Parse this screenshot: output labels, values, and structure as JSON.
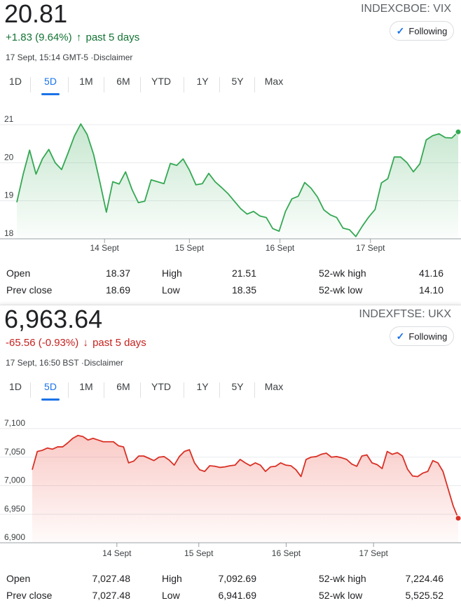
{
  "panels": [
    {
      "id": "vix",
      "price": "20.81",
      "exchange": "INDEXCBOE: VIX",
      "change_text": "+1.83 (9.64%)",
      "change_arrow": "↑",
      "change_period": "past 5 days",
      "direction": "up",
      "follow_label": "Following",
      "timestamp": "17 Sept, 15:14 GMT-5 ·Disclaimer",
      "tabs": [
        "1D",
        "5D",
        "1M",
        "6M",
        "YTD",
        "1Y",
        "5Y",
        "Max"
      ],
      "active_tab": "5D",
      "line_color": "#34a853",
      "fill_color": "#34a853",
      "stats": {
        "open_label": "Open",
        "open": "18.37",
        "high_label": "High",
        "high": "21.51",
        "wk52_high_label": "52-wk high",
        "wk52_high": "41.16",
        "prev_close_label": "Prev close",
        "prev_close": "18.69",
        "low_label": "Low",
        "low": "18.35",
        "wk52_low_label": "52-wk low",
        "wk52_low": "14.10"
      }
    },
    {
      "id": "ukx",
      "price": "6,963.64",
      "exchange": "INDEXFTSE: UKX",
      "change_text": "-65.56 (-0.93%)",
      "change_arrow": "↓",
      "change_period": "past 5 days",
      "direction": "down",
      "follow_label": "Following",
      "timestamp": "17 Sept, 16:50 BST ·Disclaimer",
      "tabs": [
        "1D",
        "5D",
        "1M",
        "6M",
        "YTD",
        "1Y",
        "5Y",
        "Max"
      ],
      "active_tab": "5D",
      "line_color": "#d93025",
      "fill_color": "#ea4335",
      "stats": {
        "open_label": "Open",
        "open": "7,027.48",
        "high_label": "High",
        "high": "7,092.69",
        "wk52_high_label": "52-wk high",
        "wk52_high": "7,224.46",
        "prev_close_label": "Prev close",
        "prev_close": "7,027.48",
        "low_label": "Low",
        "low": "6,941.69",
        "wk52_low_label": "52-wk low",
        "wk52_low": "5,525.52"
      }
    }
  ],
  "chart_data": [
    {
      "type": "area",
      "ylim": [
        18,
        21
      ],
      "yticks": [
        {
          "value": 18,
          "label": "18"
        },
        {
          "value": 19,
          "label": "19"
        },
        {
          "value": 20,
          "label": "20"
        },
        {
          "value": 21,
          "label": "21"
        }
      ],
      "xticks": [
        {
          "value": 15.5,
          "label": "14 Sept"
        },
        {
          "value": 30.5,
          "label": "15 Sept"
        },
        {
          "value": 46.5,
          "label": "16 Sept"
        },
        {
          "value": 62.5,
          "label": "17 Sept"
        }
      ],
      "x_range": [
        0,
        78
      ],
      "values": [
        18.96,
        19.7,
        20.33,
        19.7,
        20.1,
        20.35,
        20.0,
        19.82,
        20.25,
        20.7,
        21.02,
        20.74,
        20.22,
        19.48,
        18.7,
        19.5,
        19.44,
        19.76,
        19.3,
        18.95,
        18.99,
        19.55,
        19.5,
        19.45,
        19.98,
        19.93,
        20.1,
        19.8,
        19.42,
        19.45,
        19.72,
        19.5,
        19.35,
        19.19,
        18.99,
        18.79,
        18.65,
        18.72,
        18.6,
        18.56,
        18.27,
        18.2,
        18.72,
        19.05,
        19.12,
        19.48,
        19.33,
        19.1,
        18.76,
        18.63,
        18.56,
        18.28,
        18.24,
        18.06,
        18.33,
        18.57,
        18.77,
        19.47,
        19.58,
        20.15,
        20.15,
        20.0,
        19.76,
        19.97,
        20.6,
        20.71,
        20.76,
        20.66,
        20.65,
        20.81
      ]
    },
    {
      "type": "area",
      "ylim": [
        6900,
        7100
      ],
      "yticks": [
        {
          "value": 6900,
          "label": "6,900"
        },
        {
          "value": 6950,
          "label": "6,950"
        },
        {
          "value": 7000,
          "label": "7,000"
        },
        {
          "value": 7050,
          "label": "7,050"
        },
        {
          "value": 7100,
          "label": "7,100"
        }
      ],
      "xticks": [
        {
          "value": 15.5,
          "label": "14 Sept"
        },
        {
          "value": 30.5,
          "label": "15 Sept"
        },
        {
          "value": 46.5,
          "label": "16 Sept"
        },
        {
          "value": 62.5,
          "label": "17 Sept"
        }
      ],
      "x_range": [
        0,
        78
      ],
      "values": [
        7028,
        7060,
        7062,
        7066,
        7064,
        7068,
        7068,
        7075,
        7083,
        7088,
        7086,
        7080,
        7083,
        7080,
        7077,
        7077,
        7077,
        7070,
        7068,
        7040,
        7043,
        7052,
        7052,
        7048,
        7044,
        7050,
        7051,
        7045,
        7036,
        7051,
        7060,
        7063,
        7040,
        7028,
        7025,
        7035,
        7034,
        7032,
        7033,
        7035,
        7036,
        7046,
        7040,
        7035,
        7040,
        7036,
        7025,
        7033,
        7034,
        7040,
        7036,
        7035,
        7028,
        7016,
        7046,
        7050,
        7051,
        7055,
        7057,
        7050,
        7051,
        7049,
        7046,
        7038,
        7034,
        7052,
        7054,
        7040,
        7037,
        7030,
        7060,
        7055,
        7058,
        7052,
        7029,
        7017,
        7016,
        7022,
        7025,
        7044,
        7040,
        7025,
        6995,
        6965,
        6943
      ]
    }
  ]
}
